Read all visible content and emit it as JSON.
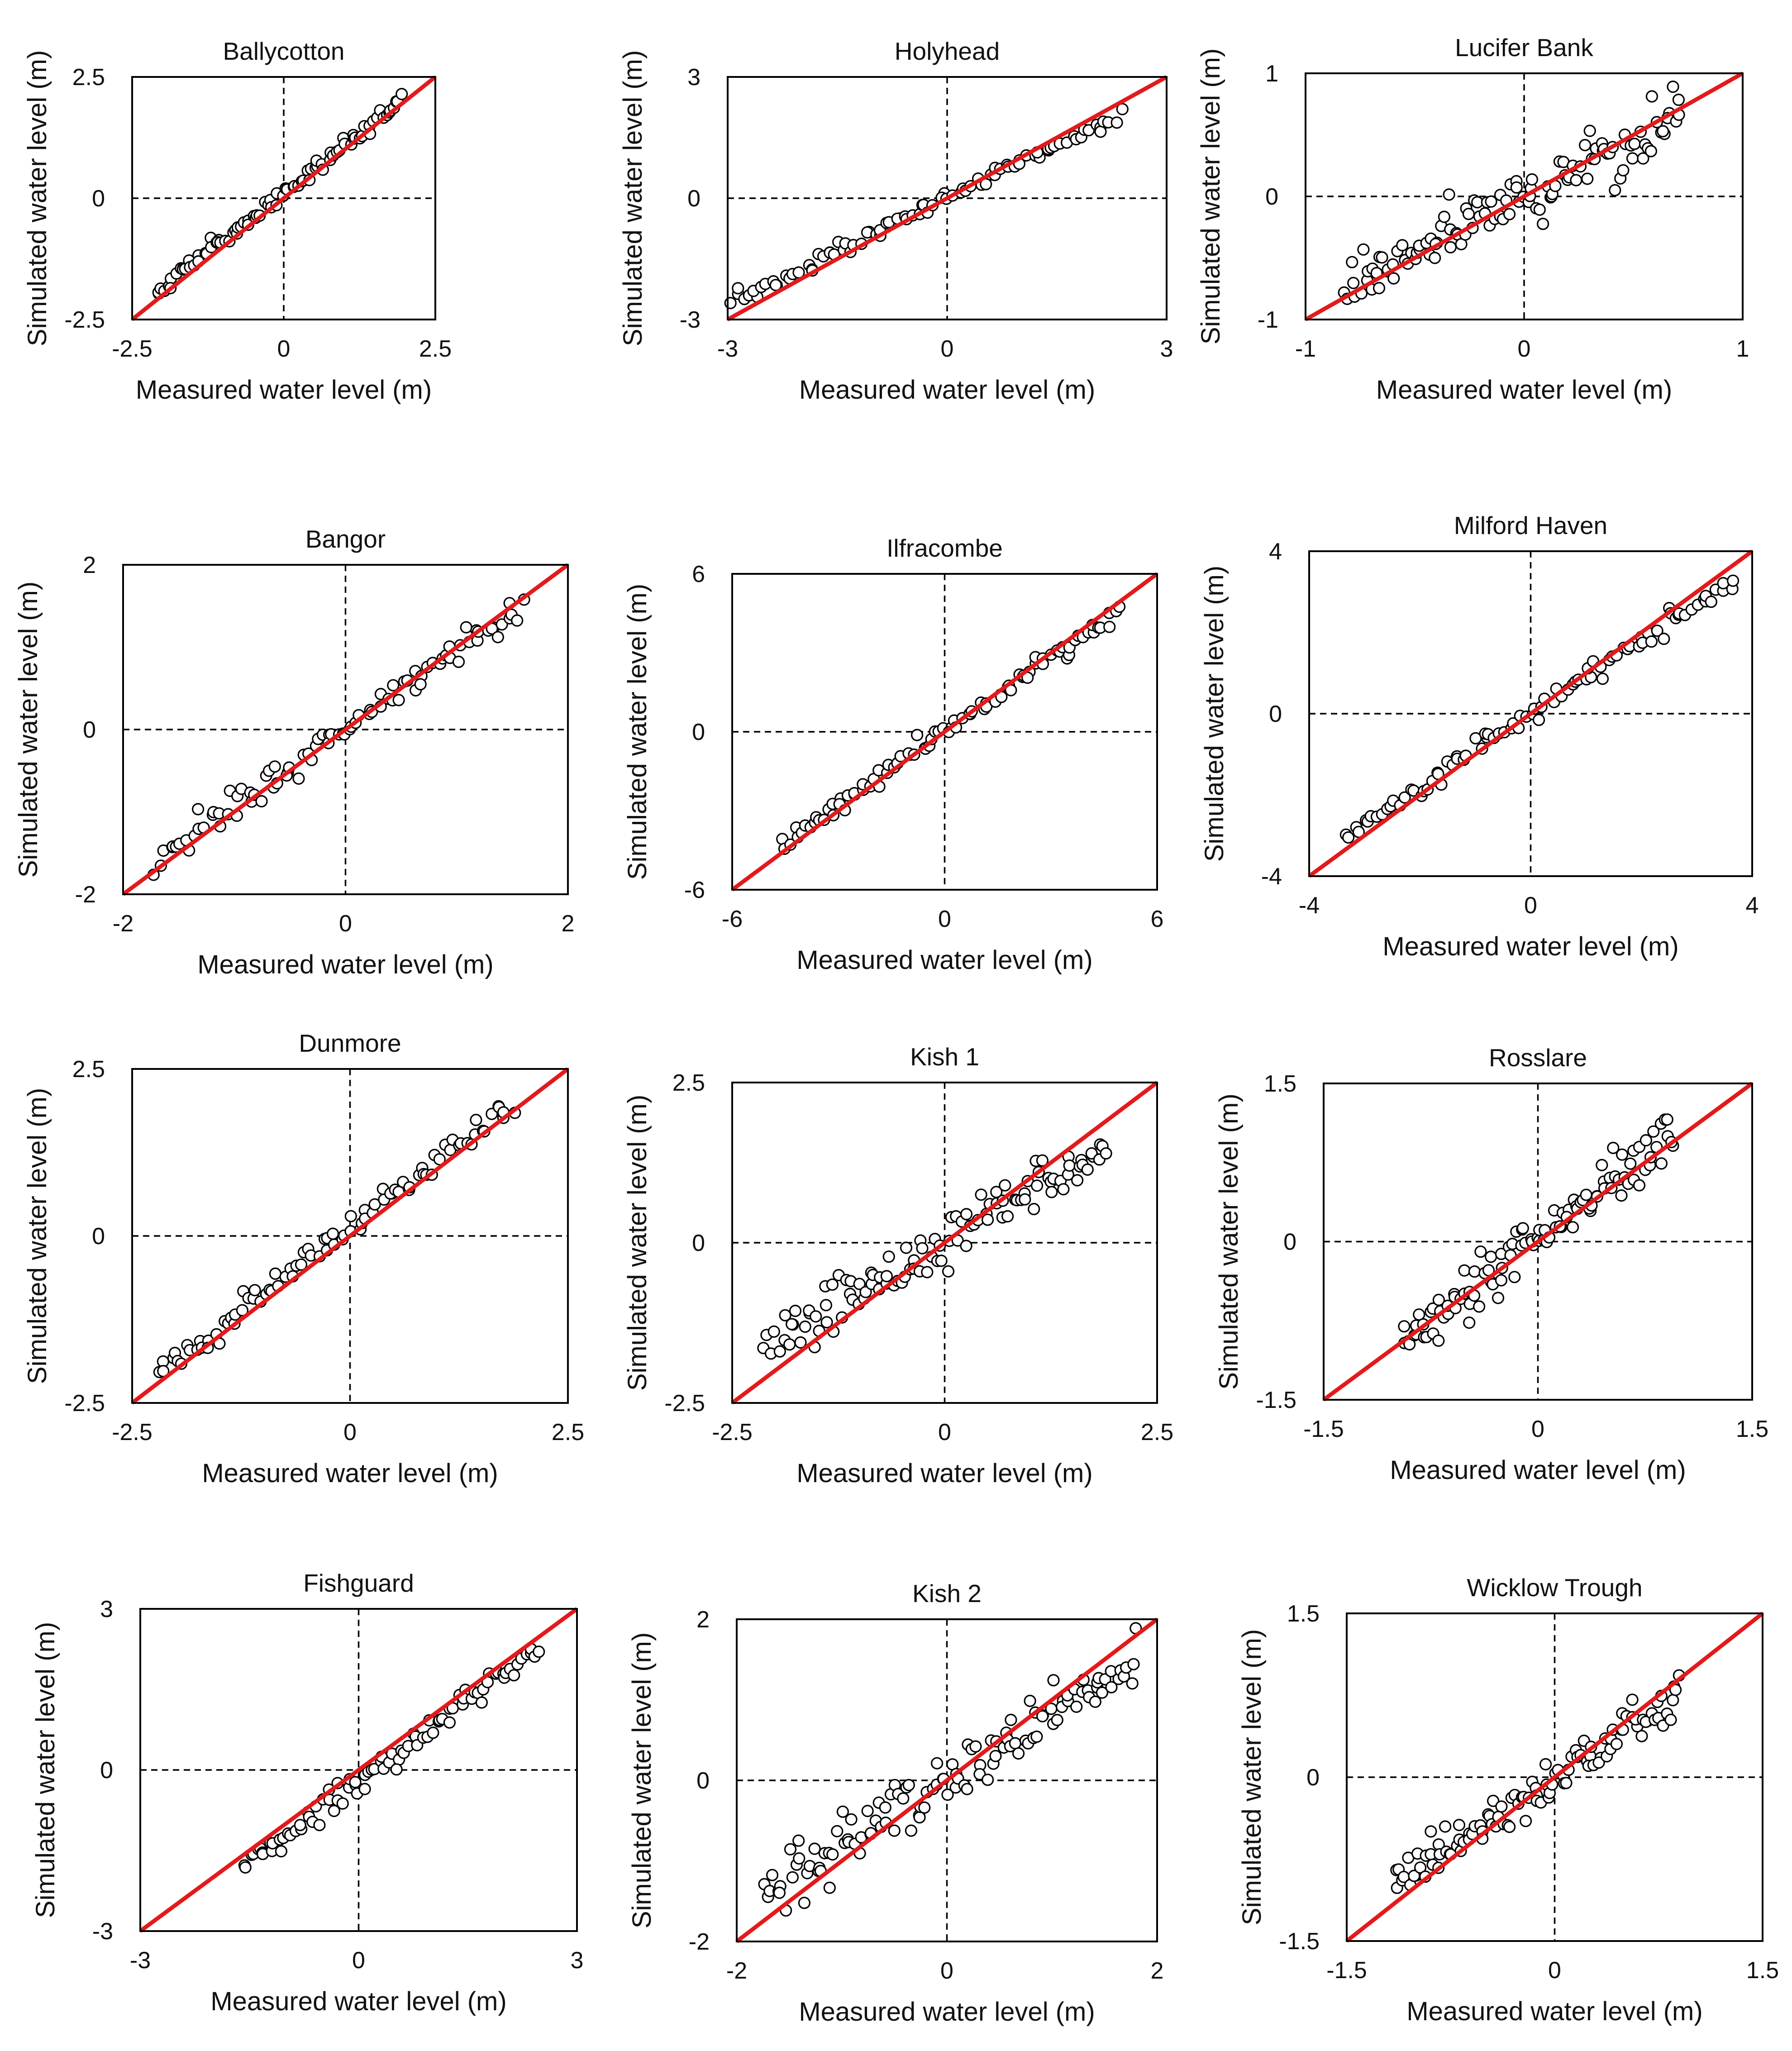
{
  "figure": {
    "background": "#ffffff",
    "fit_line_color": "#e31a1c",
    "marker": "open-circle"
  },
  "chart_data": [
    {
      "type": "scatter",
      "title": "Ballycotton",
      "xlabel": "Measured water level (m)",
      "ylabel": "Simulated water level (m)",
      "xlim": [
        -2.5,
        2.5
      ],
      "ylim": [
        -2.5,
        2.5
      ],
      "x_ticks": [
        "-2.5",
        "0",
        "2.5"
      ],
      "y_ticks": [
        "-2.5",
        "0",
        "2.5"
      ],
      "reference_line": "1:1",
      "points": {
        "x_min": -2.1,
        "x_max": 1.95,
        "slope": 0.96,
        "intercept": 0.1,
        "spread": 0.08,
        "count": 90
      }
    },
    {
      "type": "scatter",
      "title": "Holyhead",
      "xlabel": "Measured water level (m)",
      "ylabel": "Simulated water level (m)",
      "xlim": [
        -3,
        3
      ],
      "ylim": [
        -3,
        3
      ],
      "x_ticks": [
        "-3",
        "0",
        "3"
      ],
      "y_ticks": [
        "-3",
        "0",
        "3"
      ],
      "reference_line": "1:1",
      "points": {
        "x_min": -2.95,
        "x_max": 2.35,
        "slope": 0.87,
        "intercept": 0.0,
        "spread": 0.1,
        "count": 90
      }
    },
    {
      "type": "scatter",
      "title": "Lucifer Bank",
      "xlabel": "Measured water level (m)",
      "ylabel": "Simulated water level (m)",
      "xlim": [
        -1,
        1
      ],
      "ylim": [
        -1,
        1
      ],
      "x_ticks": [
        "-1",
        "0",
        "1"
      ],
      "y_ticks": [
        "-1",
        "0",
        "1"
      ],
      "reference_line": "1:1",
      "points": {
        "x_min": -0.82,
        "x_max": 0.72,
        "slope": 0.88,
        "intercept": 0.0,
        "spread": 0.12,
        "count": 120
      }
    },
    {
      "type": "scatter",
      "title": "Bangor",
      "xlabel": "Measured water level (m)",
      "ylabel": "Simulated water level (m)",
      "xlim": [
        -2,
        2
      ],
      "ylim": [
        -2,
        2
      ],
      "x_ticks": [
        "-2",
        "0",
        "2"
      ],
      "y_ticks": [
        "-2",
        "0",
        "2"
      ],
      "reference_line": "1:1",
      "points": {
        "x_min": -1.7,
        "x_max": 1.6,
        "slope": 0.92,
        "intercept": 0.0,
        "spread": 0.09,
        "count": 90
      }
    },
    {
      "type": "scatter",
      "title": "Ilfracombe",
      "xlabel": "Measured water level (m)",
      "ylabel": "Simulated water level (m)",
      "xlim": [
        -6,
        6
      ],
      "ylim": [
        -6,
        6
      ],
      "x_ticks": [
        "-6",
        "0",
        "6"
      ],
      "y_ticks": [
        "-6",
        "0",
        "6"
      ],
      "reference_line": "1:1",
      "points": {
        "x_min": -4.6,
        "x_max": 4.9,
        "slope": 0.93,
        "intercept": 0.0,
        "spread": 0.18,
        "count": 90
      }
    },
    {
      "type": "scatter",
      "title": "Milford Haven",
      "xlabel": "Measured water level (m)",
      "ylabel": "Simulated water level (m)",
      "xlim": [
        -4,
        4
      ],
      "ylim": [
        -4,
        4
      ],
      "x_ticks": [
        "-4",
        "0",
        "4"
      ],
      "y_ticks": [
        "-4",
        "0",
        "4"
      ],
      "reference_line": "1:1",
      "points": {
        "x_min": -3.3,
        "x_max": 3.7,
        "slope": 0.9,
        "intercept": 0.0,
        "spread": 0.12,
        "count": 90
      }
    },
    {
      "type": "scatter",
      "title": "Dunmore",
      "xlabel": "Measured water level (m)",
      "ylabel": "Simulated water level (m)",
      "xlim": [
        -2.5,
        2.5
      ],
      "ylim": [
        -2.5,
        2.5
      ],
      "x_ticks": [
        "-2.5",
        "0",
        "2.5"
      ],
      "y_ticks": [
        "-2.5",
        "0",
        "2.5"
      ],
      "reference_line": "1:1",
      "points": {
        "x_min": -2.2,
        "x_max": 1.85,
        "slope": 1.0,
        "intercept": 0.1,
        "spread": 0.1,
        "count": 90
      }
    },
    {
      "type": "scatter",
      "title": "Kish 1",
      "xlabel": "Measured water level (m)",
      "ylabel": "Simulated water level (m)",
      "xlim": [
        -2.5,
        2.5
      ],
      "ylim": [
        -2.5,
        2.5
      ],
      "x_ticks": [
        "-2.5",
        "0",
        "2.5"
      ],
      "y_ticks": [
        "-2.5",
        "0",
        "2.5"
      ],
      "reference_line": "1:1",
      "points": {
        "x_min": -2.1,
        "x_max": 1.9,
        "slope": 0.8,
        "intercept": 0.05,
        "spread": 0.2,
        "count": 110
      }
    },
    {
      "type": "scatter",
      "title": "Rosslare",
      "xlabel": "Measured water level (m)",
      "ylabel": "Simulated water level (m)",
      "xlim": [
        -1.5,
        1.5
      ],
      "ylim": [
        -1.5,
        1.5
      ],
      "x_ticks": [
        "-1.5",
        "0",
        "1.5"
      ],
      "y_ticks": [
        "-1.5",
        "0",
        "1.5"
      ],
      "reference_line": "1:1",
      "points": {
        "x_min": -0.95,
        "x_max": 0.95,
        "slope": 1.05,
        "intercept": 0.0,
        "spread": 0.12,
        "count": 110
      }
    },
    {
      "type": "scatter",
      "title": "Fishguard",
      "xlabel": "Measured water level (m)",
      "ylabel": "Simulated water level (m)",
      "xlim": [
        -3,
        3
      ],
      "ylim": [
        -3,
        3
      ],
      "x_ticks": [
        "-3",
        "0",
        "3"
      ],
      "y_ticks": [
        "-3",
        "0",
        "3"
      ],
      "reference_line": "1:1",
      "points": {
        "x_min": -1.6,
        "x_max": 2.5,
        "slope": 1.0,
        "intercept": -0.2,
        "spread": 0.12,
        "count": 90
      }
    },
    {
      "type": "scatter",
      "title": "Kish 2",
      "xlabel": "Measured water level (m)",
      "ylabel": "Simulated water level (m)",
      "xlim": [
        -2,
        2
      ],
      "ylim": [
        -2,
        2
      ],
      "x_ticks": [
        "-2",
        "0",
        "2"
      ],
      "y_ticks": [
        "-2",
        "0",
        "2"
      ],
      "reference_line": "1:1",
      "points": {
        "x_min": -1.75,
        "x_max": 1.8,
        "slope": 0.8,
        "intercept": 0.0,
        "spread": 0.18,
        "count": 120
      }
    },
    {
      "type": "scatter",
      "title": "Wicklow Trough",
      "xlabel": "Measured water level (m)",
      "ylabel": "Simulated water level (m)",
      "xlim": [
        -1.5,
        1.5
      ],
      "ylim": [
        -1.5,
        1.5
      ],
      "x_ticks": [
        "-1.5",
        "0",
        "1.5"
      ],
      "y_ticks": [
        "-1.5",
        "0",
        "1.5"
      ],
      "reference_line": "1:1",
      "points": {
        "x_min": -1.15,
        "x_max": 0.9,
        "slope": 0.8,
        "intercept": 0.0,
        "spread": 0.1,
        "count": 110
      }
    }
  ]
}
